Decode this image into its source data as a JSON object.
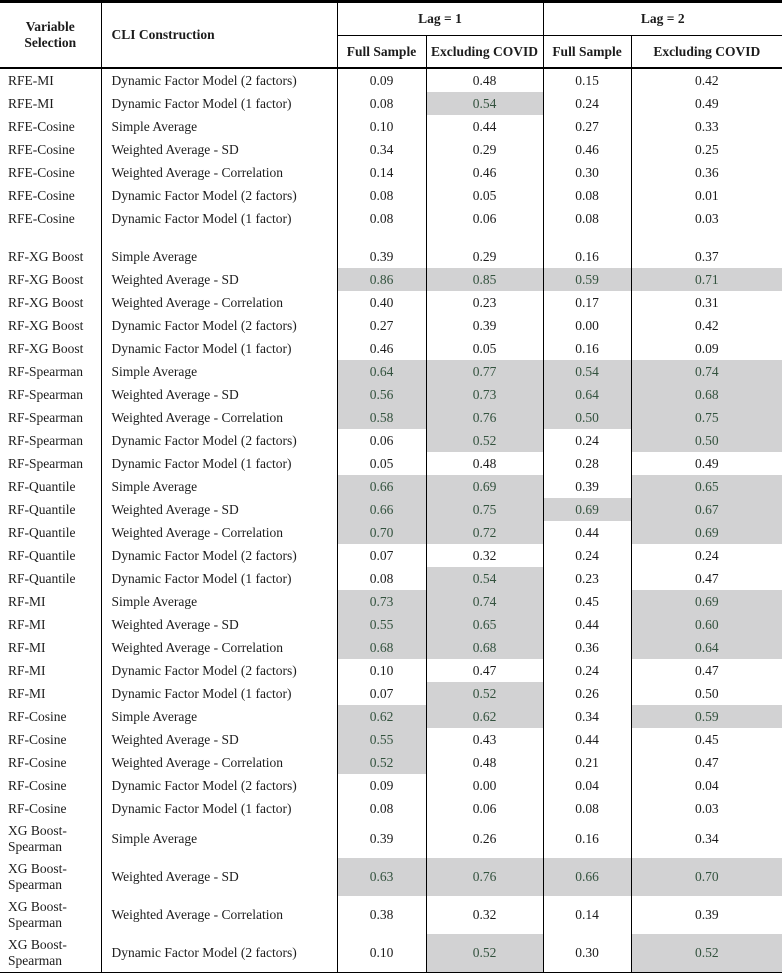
{
  "table": {
    "header": {
      "variable_selection": "Variable Selection",
      "cli_construction": "CLI Construction",
      "lag1": "Lag = 1",
      "lag2": "Lag = 2",
      "full_sample_1": "Full Sample",
      "excluding_covid_1": "Excluding COVID",
      "full_sample_2": "Full Sample",
      "excluding_covid_2": "Excluding COVID"
    },
    "colors": {
      "shaded_cell_background": "#d2d2d3",
      "shaded_cell_text": "#33523e",
      "body_text": "#1c1c1c",
      "border": "#000000"
    },
    "rows": [
      {
        "variable_selection": "RFE-MI",
        "cli_construction": "Dynamic Factor Model (2 factors)",
        "values": [
          "0.09",
          "0.48",
          "0.15",
          "0.42"
        ],
        "shaded": [
          0,
          0,
          0,
          0
        ]
      },
      {
        "variable_selection": "RFE-MI",
        "cli_construction": "Dynamic Factor Model (1 factor)",
        "values": [
          "0.08",
          "0.54",
          "0.24",
          "0.49"
        ],
        "shaded": [
          0,
          1,
          0,
          0
        ]
      },
      {
        "variable_selection": "RFE-Cosine",
        "cli_construction": "Simple Average",
        "values": [
          "0.10",
          "0.44",
          "0.27",
          "0.33"
        ],
        "shaded": [
          0,
          0,
          0,
          0
        ]
      },
      {
        "variable_selection": "RFE-Cosine",
        "cli_construction": "Weighted Average - SD",
        "values": [
          "0.34",
          "0.29",
          "0.46",
          "0.25"
        ],
        "shaded": [
          0,
          0,
          0,
          0
        ]
      },
      {
        "variable_selection": "RFE-Cosine",
        "cli_construction": "Weighted Average - Correlation",
        "values": [
          "0.14",
          "0.46",
          "0.30",
          "0.36"
        ],
        "shaded": [
          0,
          0,
          0,
          0
        ]
      },
      {
        "variable_selection": "RFE-Cosine",
        "cli_construction": "Dynamic Factor Model (2 factors)",
        "values": [
          "0.08",
          "0.05",
          "0.08",
          "0.01"
        ],
        "shaded": [
          0,
          0,
          0,
          0
        ]
      },
      {
        "variable_selection": "RFE-Cosine",
        "cli_construction": "Dynamic Factor Model (1 factor)",
        "values": [
          "0.08",
          "0.06",
          "0.08",
          "0.03"
        ],
        "shaded": [
          0,
          0,
          0,
          0
        ]
      },
      {
        "variable_selection": "RF-XG Boost",
        "cli_construction": "Simple Average",
        "values": [
          "0.39",
          "0.29",
          "0.16",
          "0.37"
        ],
        "shaded": [
          0,
          0,
          0,
          0
        ],
        "gap_before": true
      },
      {
        "variable_selection": "RF-XG Boost",
        "cli_construction": "Weighted Average - SD",
        "values": [
          "0.86",
          "0.85",
          "0.59",
          "0.71"
        ],
        "shaded": [
          1,
          1,
          1,
          1
        ]
      },
      {
        "variable_selection": "RF-XG Boost",
        "cli_construction": "Weighted Average - Correlation",
        "values": [
          "0.40",
          "0.23",
          "0.17",
          "0.31"
        ],
        "shaded": [
          0,
          0,
          0,
          0
        ]
      },
      {
        "variable_selection": "RF-XG Boost",
        "cli_construction": "Dynamic Factor Model (2 factors)",
        "values": [
          "0.27",
          "0.39",
          "0.00",
          "0.42"
        ],
        "shaded": [
          0,
          0,
          0,
          0
        ]
      },
      {
        "variable_selection": "RF-XG Boost",
        "cli_construction": "Dynamic Factor Model (1 factor)",
        "values": [
          "0.46",
          "0.05",
          "0.16",
          "0.09"
        ],
        "shaded": [
          0,
          0,
          0,
          0
        ]
      },
      {
        "variable_selection": "RF-Spearman",
        "cli_construction": "Simple Average",
        "values": [
          "0.64",
          "0.77",
          "0.54",
          "0.74"
        ],
        "shaded": [
          1,
          1,
          1,
          1
        ]
      },
      {
        "variable_selection": "RF-Spearman",
        "cli_construction": "Weighted Average - SD",
        "values": [
          "0.56",
          "0.73",
          "0.64",
          "0.68"
        ],
        "shaded": [
          1,
          1,
          1,
          1
        ]
      },
      {
        "variable_selection": "RF-Spearman",
        "cli_construction": "Weighted Average - Correlation",
        "values": [
          "0.58",
          "0.76",
          "0.50",
          "0.75"
        ],
        "shaded": [
          1,
          1,
          1,
          1
        ]
      },
      {
        "variable_selection": "RF-Spearman",
        "cli_construction": "Dynamic Factor Model (2 factors)",
        "values": [
          "0.06",
          "0.52",
          "0.24",
          "0.50"
        ],
        "shaded": [
          0,
          1,
          0,
          1
        ]
      },
      {
        "variable_selection": "RF-Spearman",
        "cli_construction": "Dynamic Factor Model (1 factor)",
        "values": [
          "0.05",
          "0.48",
          "0.28",
          "0.49"
        ],
        "shaded": [
          0,
          0,
          0,
          0
        ]
      },
      {
        "variable_selection": "RF-Quantile",
        "cli_construction": "Simple Average",
        "values": [
          "0.66",
          "0.69",
          "0.39",
          "0.65"
        ],
        "shaded": [
          1,
          1,
          0,
          1
        ]
      },
      {
        "variable_selection": "RF-Quantile",
        "cli_construction": "Weighted Average - SD",
        "values": [
          "0.66",
          "0.75",
          "0.69",
          "0.67"
        ],
        "shaded": [
          1,
          1,
          1,
          1
        ]
      },
      {
        "variable_selection": "RF-Quantile",
        "cli_construction": "Weighted Average - Correlation",
        "values": [
          "0.70",
          "0.72",
          "0.44",
          "0.69"
        ],
        "shaded": [
          1,
          1,
          0,
          1
        ]
      },
      {
        "variable_selection": "RF-Quantile",
        "cli_construction": "Dynamic Factor Model (2 factors)",
        "values": [
          "0.07",
          "0.32",
          "0.24",
          "0.24"
        ],
        "shaded": [
          0,
          0,
          0,
          0
        ]
      },
      {
        "variable_selection": "RF-Quantile",
        "cli_construction": "Dynamic Factor Model (1 factor)",
        "values": [
          "0.08",
          "0.54",
          "0.23",
          "0.47"
        ],
        "shaded": [
          0,
          1,
          0,
          0
        ]
      },
      {
        "variable_selection": "RF-MI",
        "cli_construction": "Simple Average",
        "values": [
          "0.73",
          "0.74",
          "0.45",
          "0.69"
        ],
        "shaded": [
          1,
          1,
          0,
          1
        ]
      },
      {
        "variable_selection": "RF-MI",
        "cli_construction": "Weighted Average - SD",
        "values": [
          "0.55",
          "0.65",
          "0.44",
          "0.60"
        ],
        "shaded": [
          1,
          1,
          0,
          1
        ]
      },
      {
        "variable_selection": "RF-MI",
        "cli_construction": "Weighted Average - Correlation",
        "values": [
          "0.68",
          "0.68",
          "0.36",
          "0.64"
        ],
        "shaded": [
          1,
          1,
          0,
          1
        ]
      },
      {
        "variable_selection": "RF-MI",
        "cli_construction": "Dynamic Factor Model (2 factors)",
        "values": [
          "0.10",
          "0.47",
          "0.24",
          "0.47"
        ],
        "shaded": [
          0,
          0,
          0,
          0
        ]
      },
      {
        "variable_selection": "RF-MI",
        "cli_construction": "Dynamic Factor Model (1 factor)",
        "values": [
          "0.07",
          "0.52",
          "0.26",
          "0.50"
        ],
        "shaded": [
          0,
          1,
          0,
          0
        ]
      },
      {
        "variable_selection": "RF-Cosine",
        "cli_construction": "Simple Average",
        "values": [
          "0.62",
          "0.62",
          "0.34",
          "0.59"
        ],
        "shaded": [
          1,
          1,
          0,
          1
        ]
      },
      {
        "variable_selection": "RF-Cosine",
        "cli_construction": "Weighted Average - SD",
        "values": [
          "0.55",
          "0.43",
          "0.44",
          "0.45"
        ],
        "shaded": [
          1,
          0,
          0,
          0
        ]
      },
      {
        "variable_selection": "RF-Cosine",
        "cli_construction": "Weighted Average - Correlation",
        "values": [
          "0.52",
          "0.48",
          "0.21",
          "0.47"
        ],
        "shaded": [
          1,
          0,
          0,
          0
        ]
      },
      {
        "variable_selection": "RF-Cosine",
        "cli_construction": "Dynamic Factor Model (2 factors)",
        "values": [
          "0.09",
          "0.00",
          "0.04",
          "0.04"
        ],
        "shaded": [
          0,
          0,
          0,
          0
        ]
      },
      {
        "variable_selection": "RF-Cosine",
        "cli_construction": "Dynamic Factor Model (1 factor)",
        "values": [
          "0.08",
          "0.06",
          "0.08",
          "0.03"
        ],
        "shaded": [
          0,
          0,
          0,
          0
        ]
      },
      {
        "variable_selection": "XG Boost-Spearman",
        "cli_construction": "Simple Average",
        "values": [
          "0.39",
          "0.26",
          "0.16",
          "0.34"
        ],
        "shaded": [
          0,
          0,
          0,
          0
        ],
        "tall": true
      },
      {
        "variable_selection": "XG Boost-Spearman",
        "cli_construction": "Weighted Average - SD",
        "values": [
          "0.63",
          "0.76",
          "0.66",
          "0.70"
        ],
        "shaded": [
          1,
          1,
          1,
          1
        ],
        "tall": true
      },
      {
        "variable_selection": "XG Boost-Spearman",
        "cli_construction": "Weighted Average - Correlation",
        "values": [
          "0.38",
          "0.32",
          "0.14",
          "0.39"
        ],
        "shaded": [
          0,
          0,
          0,
          0
        ],
        "tall": true
      },
      {
        "variable_selection": "XG Boost-Spearman",
        "cli_construction": "Dynamic Factor Model (2 factors)",
        "values": [
          "0.10",
          "0.52",
          "0.30",
          "0.52"
        ],
        "shaded": [
          0,
          1,
          0,
          1
        ],
        "tall": true
      }
    ]
  }
}
